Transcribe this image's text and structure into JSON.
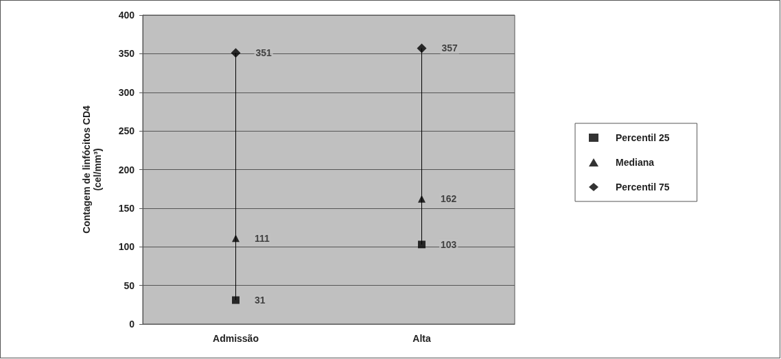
{
  "chart_data": {
    "type": "scatter",
    "ylabel": "Contagem de linfócitos CD4\n(cel/mm³)",
    "categories": [
      "Admissão",
      "Alta"
    ],
    "series": [
      {
        "type": "line",
        "color": "#000000",
        "marker": "none",
        "x": [
          "Admissão",
          "Admissão"
        ],
        "values": [
          31,
          351
        ],
        "value_labels": [
          null,
          null
        ]
      },
      {
        "type": "line",
        "color": "#000000",
        "marker": "none",
        "x": [
          "Alta",
          "Alta"
        ],
        "values": [
          103,
          357
        ],
        "value_labels": [
          null,
          null
        ]
      },
      {
        "name": "Percentil 25",
        "color": "#000000",
        "marker": "square",
        "values": [
          31,
          103
        ]
      },
      {
        "name": "Mediana",
        "color": "#000000",
        "marker": "triangle",
        "values": [
          111,
          162
        ]
      },
      {
        "name": "Percentil 75",
        "color": "#000000",
        "marker": "diamond",
        "values": [
          351,
          357
        ]
      }
    ],
    "ylim": [
      0,
      400
    ],
    "yticks": [
      0,
      50,
      100,
      150,
      200,
      250,
      300,
      350,
      400
    ],
    "grid": "y",
    "legend": "right",
    "data_labels": true
  }
}
